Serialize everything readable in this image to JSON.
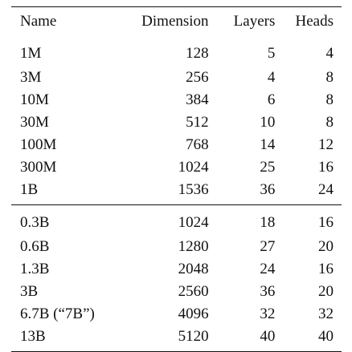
{
  "table": {
    "columns": [
      "Name",
      "Dimension",
      "Layers",
      "Heads"
    ],
    "groups": [
      {
        "rows": [
          {
            "name": "1M",
            "dimension": "128",
            "layers": "5",
            "heads": "4"
          },
          {
            "name": "3M",
            "dimension": "256",
            "layers": "4",
            "heads": "8"
          },
          {
            "name": "10M",
            "dimension": "384",
            "layers": "6",
            "heads": "8"
          },
          {
            "name": "30M",
            "dimension": "512",
            "layers": "10",
            "heads": "8"
          },
          {
            "name": "100M",
            "dimension": "768",
            "layers": "14",
            "heads": "12"
          },
          {
            "name": "300M",
            "dimension": "1024",
            "layers": "25",
            "heads": "16"
          },
          {
            "name": "1B",
            "dimension": "1536",
            "layers": "36",
            "heads": "24"
          }
        ]
      },
      {
        "rows": [
          {
            "name": "0.3B",
            "dimension": "1024",
            "layers": "18",
            "heads": "16"
          },
          {
            "name": "0.6B",
            "dimension": "1280",
            "layers": "27",
            "heads": "20"
          },
          {
            "name": "1.3B",
            "dimension": "2048",
            "layers": "24",
            "heads": "16"
          },
          {
            "name": "3B",
            "dimension": "2560",
            "layers": "36",
            "heads": "20"
          },
          {
            "name": "6.7B (“7B”)",
            "dimension": "4096",
            "layers": "32",
            "heads": "32"
          },
          {
            "name": "13B",
            "dimension": "5120",
            "layers": "40",
            "heads": "40"
          }
        ]
      }
    ]
  }
}
